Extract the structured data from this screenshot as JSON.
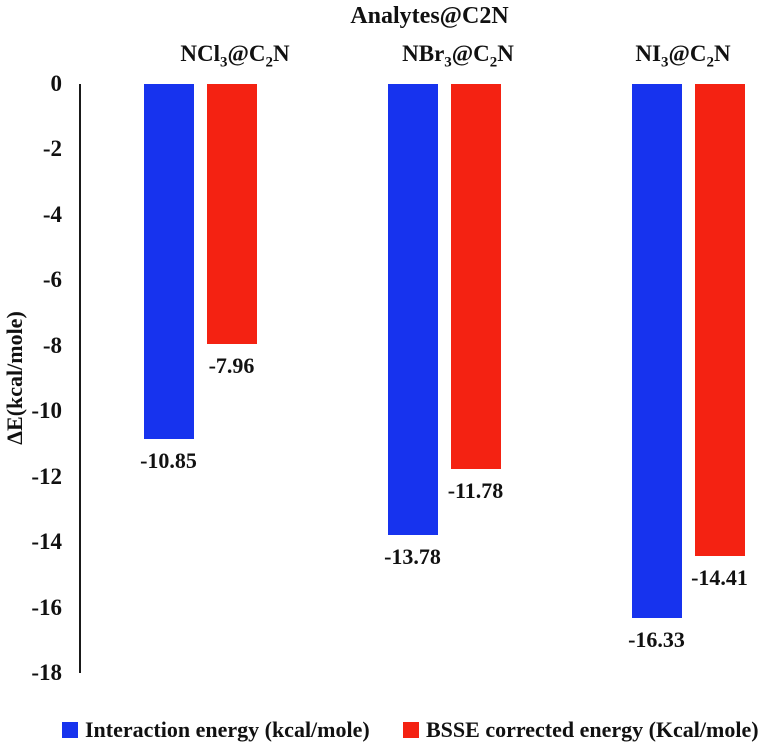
{
  "chart_data": {
    "type": "bar",
    "title": "Analytes@C2N",
    "ylabel": "ΔE(kcal/mole)",
    "xlabel": "",
    "ylim": [
      -18,
      0
    ],
    "yticks": [
      0,
      -2,
      -4,
      -6,
      -8,
      -10,
      -12,
      -14,
      -16,
      -18
    ],
    "grid": false,
    "bar_orientation": "vertical-negative",
    "value_labels_shown": true,
    "legend_position": "bottom",
    "categories": [
      "NCl3@C2N",
      "NBr3@C2N",
      "NI3@C2N"
    ],
    "category_label_parts": [
      [
        "NCl",
        "3",
        "@C",
        "2",
        "N"
      ],
      [
        "NBr",
        "3",
        "@C",
        "2",
        "N"
      ],
      [
        "NI",
        "3",
        "@C",
        "2",
        "N"
      ]
    ],
    "series": [
      {
        "name": "Interaction energy (kcal/mole)",
        "key": "interaction-energy",
        "color": "#1733EE",
        "values": [
          -10.85,
          -13.78,
          -16.33
        ]
      },
      {
        "name": "BSSE corrected energy (Kcal/mole)",
        "key": "bsse-corrected-energy",
        "color": "#F42212",
        "values": [
          -7.96,
          -11.78,
          -14.41
        ]
      }
    ],
    "colors": {
      "axis": "#1a1a1a",
      "text": "#111111",
      "background": "#ffffff"
    }
  }
}
